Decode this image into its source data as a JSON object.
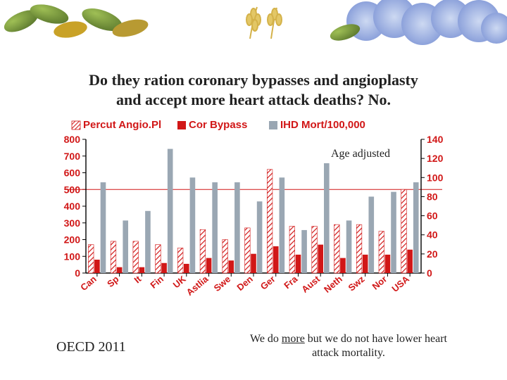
{
  "title_line1": "Do they ration coronary bypasses and angioplasty",
  "title_line2": "and accept more heart attack deaths?  No.",
  "age_adjusted_label": "Age adjusted",
  "footer_left": "OECD 2011",
  "footer_right": "We do more but we do not have lower heart attack mortality.",
  "chart": {
    "type": "grouped-bar-dual-axis",
    "categories": [
      "Can",
      "Sp",
      "It",
      "Fin",
      "UK",
      "Astlia",
      "Swe",
      "Den",
      "Ger",
      "Fra",
      "Aust",
      "Neth",
      "Swz",
      "Nor",
      "USA"
    ],
    "series": [
      {
        "name": "Percut Angio.Pl",
        "color": "#d11717",
        "pattern": "hatch",
        "values": [
          170,
          190,
          190,
          170,
          150,
          260,
          200,
          270,
          620,
          280,
          280,
          290,
          290,
          250,
          500
        ]
      },
      {
        "name": "Cor Bypass",
        "color": "#d11717",
        "pattern": "solid",
        "values": [
          80,
          35,
          35,
          60,
          55,
          90,
          75,
          115,
          160,
          110,
          170,
          90,
          110,
          110,
          140
        ]
      },
      {
        "name": "IHD Mort/100,000",
        "color": "#9aa7b3",
        "pattern": "solid",
        "axis": "right",
        "values": [
          95,
          55,
          65,
          130,
          100,
          95,
          95,
          75,
          100,
          45,
          115,
          55,
          80,
          85,
          95
        ]
      }
    ],
    "left_axis": {
      "min": 0,
      "max": 800,
      "step": 100,
      "font_size": 14,
      "color": "#d11717",
      "weight": "bold"
    },
    "right_axis": {
      "min": 0,
      "max": 140,
      "step": 20,
      "font_size": 14,
      "color": "#d11717",
      "weight": "bold"
    },
    "axis_line_color": "#000000",
    "grid_color": "#dfe3e6",
    "reference_line": {
      "y_left": 500,
      "color": "#d11717",
      "width": 1
    },
    "plot_bg": "#ffffff",
    "legend_font_size": 15,
    "legend_font_weight": "bold",
    "category_label_color": "#d11717",
    "category_label_fontsize": 13,
    "category_label_rotation": -40,
    "underline": {
      "word": "more",
      "words_in_footer_right": [
        "We",
        "do",
        "more",
        "but",
        "we",
        "do",
        "not",
        "have",
        "lower",
        "heart",
        "attack",
        "mortality."
      ]
    },
    "decor": {
      "leaf_colors": [
        "#7a9a4a",
        "#c9a227",
        "#d4b24a",
        "#7289c5",
        "#9fb4e6"
      ],
      "flower_center": "#e3d26f"
    }
  }
}
